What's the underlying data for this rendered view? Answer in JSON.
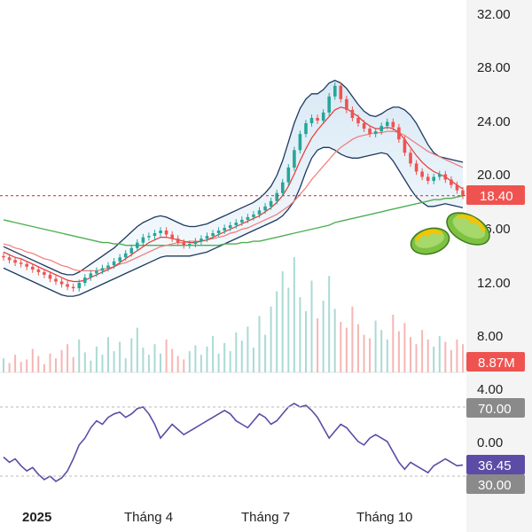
{
  "chart_data": {
    "type": "candlestick",
    "x_labels": [
      "2025",
      "Tháng 4",
      "Tháng 7",
      "Tháng 10"
    ],
    "price_axis": {
      "ticks": [
        "32.00",
        "28.00",
        "24.00",
        "20.00",
        "16.00",
        "12.00",
        "8.00"
      ],
      "ylim": [
        7,
        33
      ]
    },
    "last_price": "18.40",
    "volume": {
      "label": "8.87M"
    },
    "rsi": {
      "ticks": [
        "4.00",
        "0.00"
      ],
      "levels": {
        "upper": "70.00",
        "lower": "30.00"
      },
      "value": "36.45"
    },
    "colors": {
      "up": "#26a69a",
      "down": "#ef5350",
      "ma_fast": "#e53935",
      "ma_mid": "#ef7a7a",
      "ma_slow": "#4caf50",
      "bollinger": "#1e3a5f",
      "rsi_line": "#5c4ca5",
      "badge_price": "#ef5350",
      "badge_level": "#8a8a8a",
      "badge_rsi": "#5c4ca5"
    },
    "price_series": {
      "close": [
        13.8,
        13.6,
        13.4,
        13.3,
        13.1,
        12.9,
        12.7,
        12.5,
        12.2,
        12.0,
        11.8,
        11.6,
        11.5,
        11.9,
        12.3,
        12.6,
        12.8,
        13.0,
        13.2,
        13.5,
        13.8,
        14.1,
        14.5,
        14.9,
        15.3,
        15.4,
        15.6,
        15.8,
        15.5,
        15.2,
        14.9,
        14.7,
        14.8,
        15.0,
        15.2,
        15.4,
        15.6,
        15.8,
        16.0,
        16.2,
        16.4,
        16.6,
        16.8,
        17.0,
        17.3,
        17.6,
        18.0,
        18.6,
        19.4,
        20.5,
        21.8,
        23.0,
        23.8,
        24.2,
        24.0,
        24.6,
        25.8,
        26.6,
        25.6,
        24.8,
        24.2,
        23.8,
        23.4,
        23.0,
        23.2,
        23.6,
        23.9,
        23.5,
        22.6,
        21.6,
        20.8,
        20.2,
        19.8,
        19.5,
        19.8,
        20.0,
        19.6,
        19.2,
        18.8,
        18.4
      ],
      "ma_fast": [
        14.2,
        14.0,
        13.8,
        13.7,
        13.5,
        13.3,
        13.1,
        12.9,
        12.7,
        12.5,
        12.3,
        12.1,
        12.0,
        12.0,
        12.1,
        12.3,
        12.5,
        12.7,
        12.9,
        13.1,
        13.4,
        13.7,
        14.0,
        14.3,
        14.6,
        14.9,
        15.1,
        15.3,
        15.3,
        15.2,
        15.1,
        15.0,
        14.9,
        14.9,
        15.0,
        15.1,
        15.3,
        15.5,
        15.7,
        15.9,
        16.1,
        16.3,
        16.5,
        16.7,
        16.9,
        17.2,
        17.5,
        17.9,
        18.4,
        19.1,
        20.0,
        21.0,
        21.9,
        22.7,
        23.3,
        23.8,
        24.3,
        24.8,
        25.0,
        24.9,
        24.6,
        24.3,
        23.9,
        23.6,
        23.4,
        23.4,
        23.5,
        23.4,
        23.1,
        22.6,
        22.0,
        21.4,
        20.9,
        20.5,
        20.2,
        20.0,
        19.8,
        19.5,
        19.2,
        18.9
      ],
      "ma_mid": [
        14.8,
        14.7,
        14.5,
        14.4,
        14.2,
        14.1,
        13.9,
        13.7,
        13.6,
        13.4,
        13.2,
        13.1,
        12.9,
        12.8,
        12.8,
        12.8,
        12.8,
        12.9,
        13.0,
        13.1,
        13.3,
        13.4,
        13.6,
        13.8,
        14.0,
        14.2,
        14.4,
        14.6,
        14.7,
        14.8,
        14.9,
        14.9,
        15.0,
        15.0,
        15.0,
        15.1,
        15.2,
        15.3,
        15.4,
        15.6,
        15.7,
        15.9,
        16.0,
        16.2,
        16.4,
        16.6,
        16.8,
        17.0,
        17.3,
        17.6,
        18.0,
        18.5,
        19.0,
        19.6,
        20.1,
        20.6,
        21.1,
        21.6,
        22.0,
        22.3,
        22.6,
        22.8,
        22.9,
        23.0,
        23.1,
        23.1,
        23.2,
        23.2,
        23.1,
        22.9,
        22.6,
        22.3,
        22.0,
        21.7,
        21.5,
        21.3,
        21.1,
        20.9,
        20.7,
        20.5
      ],
      "ma_slow": [
        16.6,
        16.5,
        16.4,
        16.3,
        16.2,
        16.1,
        16.0,
        15.9,
        15.8,
        15.7,
        15.6,
        15.5,
        15.4,
        15.3,
        15.2,
        15.1,
        15.0,
        14.9,
        14.9,
        14.8,
        14.8,
        14.7,
        14.7,
        14.7,
        14.7,
        14.7,
        14.7,
        14.7,
        14.7,
        14.7,
        14.7,
        14.7,
        14.7,
        14.7,
        14.7,
        14.7,
        14.7,
        14.7,
        14.8,
        14.8,
        14.8,
        14.9,
        14.9,
        15.0,
        15.0,
        15.1,
        15.2,
        15.3,
        15.4,
        15.5,
        15.6,
        15.7,
        15.8,
        15.9,
        16.0,
        16.1,
        16.2,
        16.4,
        16.5,
        16.6,
        16.7,
        16.8,
        16.9,
        17.0,
        17.1,
        17.2,
        17.3,
        17.4,
        17.5,
        17.6,
        17.7,
        17.8,
        17.9,
        18.0,
        18.1,
        18.1,
        18.2,
        18.2,
        18.3,
        18.4
      ],
      "bb_upper": [
        14.6,
        14.4,
        14.2,
        14.0,
        13.8,
        13.6,
        13.4,
        13.2,
        13.0,
        12.8,
        12.6,
        12.5,
        12.5,
        12.7,
        13.0,
        13.3,
        13.6,
        13.9,
        14.2,
        14.5,
        14.9,
        15.3,
        15.7,
        16.1,
        16.4,
        16.6,
        16.8,
        16.9,
        16.8,
        16.6,
        16.4,
        16.2,
        16.1,
        16.1,
        16.2,
        16.3,
        16.5,
        16.7,
        16.9,
        17.1,
        17.3,
        17.5,
        17.7,
        17.9,
        18.2,
        18.6,
        19.1,
        19.9,
        21.0,
        22.4,
        23.8,
        24.9,
        25.6,
        26.0,
        26.0,
        26.3,
        26.8,
        27.0,
        26.8,
        26.4,
        25.8,
        25.2,
        24.7,
        24.4,
        24.3,
        24.5,
        24.8,
        25.0,
        25.0,
        24.8,
        24.4,
        23.8,
        23.0,
        22.2,
        21.6,
        21.3,
        21.2,
        21.1,
        21.0,
        20.9
      ],
      "bb_lower": [
        13.0,
        12.8,
        12.6,
        12.4,
        12.2,
        12.0,
        11.8,
        11.6,
        11.4,
        11.2,
        11.0,
        10.9,
        10.9,
        11.0,
        11.2,
        11.4,
        11.6,
        11.8,
        12.0,
        12.2,
        12.4,
        12.6,
        12.8,
        13.0,
        13.2,
        13.4,
        13.6,
        13.8,
        13.9,
        13.9,
        13.9,
        13.9,
        13.9,
        14.0,
        14.1,
        14.2,
        14.4,
        14.6,
        14.8,
        15.0,
        15.2,
        15.4,
        15.6,
        15.8,
        16.0,
        16.2,
        16.4,
        16.6,
        16.9,
        17.4,
        18.0,
        19.0,
        20.2,
        21.2,
        21.8,
        22.0,
        22.0,
        21.8,
        21.5,
        21.3,
        21.2,
        21.2,
        21.3,
        21.4,
        21.5,
        21.6,
        21.5,
        21.0,
        20.3,
        19.6,
        18.9,
        18.3,
        17.9,
        17.6,
        17.6,
        17.7,
        17.8,
        17.7,
        17.6,
        17.5
      ],
      "volume": [
        1.2,
        0.8,
        1.5,
        0.9,
        1.1,
        2.0,
        1.4,
        0.7,
        1.6,
        1.2,
        1.9,
        2.4,
        1.3,
        2.8,
        1.7,
        1.0,
        2.2,
        1.5,
        3.0,
        1.8,
        2.6,
        1.2,
        2.9,
        3.8,
        2.1,
        1.5,
        2.4,
        1.6,
        2.8,
        2.0,
        1.4,
        1.1,
        1.8,
        2.3,
        1.5,
        2.2,
        3.1,
        1.6,
        2.5,
        1.8,
        3.4,
        2.7,
        3.9,
        2.1,
        4.8,
        3.2,
        5.6,
        6.9,
        8.6,
        7.2,
        9.8,
        6.4,
        5.2,
        7.8,
        4.6,
        6.1,
        8.2,
        5.4,
        4.3,
        3.8,
        5.6,
        4.1,
        3.2,
        2.9,
        4.4,
        3.6,
        2.8,
        4.9,
        3.5,
        4.2,
        3.0,
        2.4,
        3.6,
        2.8,
        2.2,
        3.1,
        2.6,
        1.9,
        2.8,
        2.4
      ],
      "rsi": [
        41,
        38,
        40,
        36,
        33,
        35,
        31,
        28,
        30,
        27,
        29,
        33,
        40,
        48,
        52,
        58,
        62,
        60,
        64,
        66,
        67,
        64,
        66,
        69,
        70,
        66,
        60,
        52,
        56,
        60,
        57,
        54,
        56,
        58,
        60,
        62,
        64,
        66,
        68,
        66,
        62,
        60,
        58,
        62,
        66,
        64,
        60,
        62,
        66,
        70,
        72,
        70,
        71,
        68,
        64,
        58,
        52,
        56,
        60,
        58,
        54,
        50,
        48,
        52,
        54,
        52,
        50,
        44,
        38,
        34,
        38,
        36,
        34,
        32,
        36,
        38,
        40,
        38,
        36,
        36.45
      ]
    }
  }
}
